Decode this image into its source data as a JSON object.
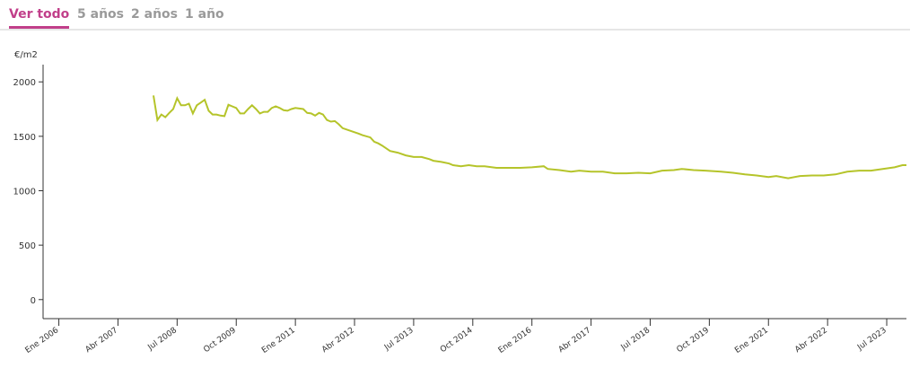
{
  "tabs": [
    "Ver todo",
    "5 años",
    "2 años",
    "1 año"
  ],
  "chart_data": {
    "type": "line",
    "y_label": "€/m2",
    "x": [
      "2008-01",
      "2008-02",
      "2008-03",
      "2008-04",
      "2008-05",
      "2008-06",
      "2008-07",
      "2008-08",
      "2008-09",
      "2008-10",
      "2008-11",
      "2008-12",
      "2009-01",
      "2009-02",
      "2009-03",
      "2009-04",
      "2009-05",
      "2009-06",
      "2009-07",
      "2009-08",
      "2009-09",
      "2009-10",
      "2009-11",
      "2009-12",
      "2010-01",
      "2010-02",
      "2010-03",
      "2010-04",
      "2010-05",
      "2010-06",
      "2010-07",
      "2010-08",
      "2010-09",
      "2010-10",
      "2010-11",
      "2010-12",
      "2011-01",
      "2011-03",
      "2011-04",
      "2011-05",
      "2011-06",
      "2011-07",
      "2011-08",
      "2011-09",
      "2011-10",
      "2011-11",
      "2011-12",
      "2012-01",
      "2012-03",
      "2012-05",
      "2012-06",
      "2012-08",
      "2012-09",
      "2012-10",
      "2012-11",
      "2013-01",
      "2013-03",
      "2013-05",
      "2013-07",
      "2013-09",
      "2013-11",
      "2013-12",
      "2014-02",
      "2014-04",
      "2014-05",
      "2014-07",
      "2014-09",
      "2014-11",
      "2015-01",
      "2015-04",
      "2015-07",
      "2015-10",
      "2016-01",
      "2016-04",
      "2016-05",
      "2016-08",
      "2016-11",
      "2017-01",
      "2017-04",
      "2017-07",
      "2017-10",
      "2018-01",
      "2018-04",
      "2018-07",
      "2018-10",
      "2019-01",
      "2019-03",
      "2019-06",
      "2019-09",
      "2020-01",
      "2020-04",
      "2020-07",
      "2020-10",
      "2021-01",
      "2021-03",
      "2021-06",
      "2021-09",
      "2021-12",
      "2022-03",
      "2022-06",
      "2022-09",
      "2022-12",
      "2023-03",
      "2023-06",
      "2023-09",
      "2023-11",
      "2023-12"
    ],
    "series": [
      {
        "color": "#b5c42a",
        "values": [
          1875,
          1650,
          1700,
          1675,
          1715,
          1750,
          1850,
          1785,
          1785,
          1800,
          1710,
          1785,
          1810,
          1835,
          1735,
          1700,
          1700,
          1690,
          1685,
          1790,
          1775,
          1760,
          1710,
          1710,
          1750,
          1785,
          1750,
          1710,
          1725,
          1725,
          1760,
          1775,
          1760,
          1740,
          1735,
          1750,
          1760,
          1750,
          1715,
          1710,
          1690,
          1715,
          1700,
          1650,
          1635,
          1640,
          1610,
          1575,
          1550,
          1525,
          1510,
          1490,
          1450,
          1435,
          1415,
          1365,
          1350,
          1325,
          1310,
          1310,
          1290,
          1275,
          1265,
          1250,
          1235,
          1225,
          1235,
          1225,
          1225,
          1210,
          1210,
          1210,
          1215,
          1225,
          1200,
          1190,
          1175,
          1185,
          1175,
          1175,
          1160,
          1160,
          1165,
          1160,
          1185,
          1190,
          1200,
          1190,
          1185,
          1175,
          1165,
          1150,
          1140,
          1125,
          1135,
          1115,
          1135,
          1140,
          1140,
          1150,
          1175,
          1185,
          1185,
          1200,
          1215,
          1235,
          1235
        ]
      }
    ],
    "xlim": [
      "2005-09",
      "2023-12"
    ],
    "xticks": [
      {
        "value": "2006-01",
        "label": "Ene 2006"
      },
      {
        "value": "2007-04",
        "label": "Abr 2007"
      },
      {
        "value": "2008-07",
        "label": "Jul 2008"
      },
      {
        "value": "2009-10",
        "label": "Oct 2009"
      },
      {
        "value": "2011-01",
        "label": "Ene 2011"
      },
      {
        "value": "2012-04",
        "label": "Abr 2012"
      },
      {
        "value": "2013-07",
        "label": "Jul 2013"
      },
      {
        "value": "2014-10",
        "label": "Oct 2014"
      },
      {
        "value": "2016-01",
        "label": "Ene 2016"
      },
      {
        "value": "2017-04",
        "label": "Abr 2017"
      },
      {
        "value": "2018-07",
        "label": "Jul 2018"
      },
      {
        "value": "2019-10",
        "label": "Oct 2019"
      },
      {
        "value": "2021-01",
        "label": "Ene 2021"
      },
      {
        "value": "2022-04",
        "label": "Abr 2022"
      },
      {
        "value": "2023-07",
        "label": "Jul 2023"
      }
    ],
    "ylim": [
      -175,
      2175
    ],
    "yticks": [
      0,
      500,
      1000,
      1500,
      2000
    ]
  }
}
